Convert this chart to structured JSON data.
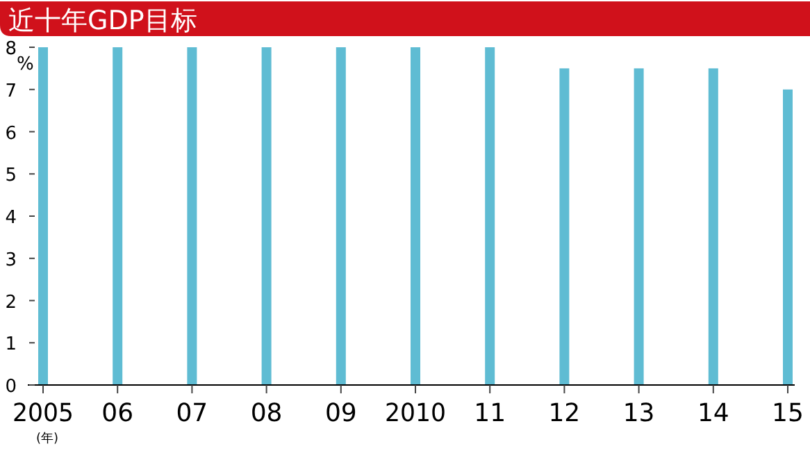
{
  "chart_data": {
    "type": "bar",
    "title": "近十年GDP目标",
    "ylabel": "%",
    "xlabel": "(年)",
    "categories": [
      "2005",
      "06",
      "07",
      "08",
      "09",
      "2010",
      "11",
      "12",
      "13",
      "14",
      "15"
    ],
    "values": [
      8,
      8,
      8,
      8,
      8,
      8,
      8,
      7.5,
      7.5,
      7.5,
      7
    ],
    "color": "#5fbcd3",
    "ylim": [
      0,
      8
    ],
    "yticks": [
      0,
      1,
      2,
      3,
      4,
      5,
      6,
      7,
      8
    ],
    "grid": false
  }
}
